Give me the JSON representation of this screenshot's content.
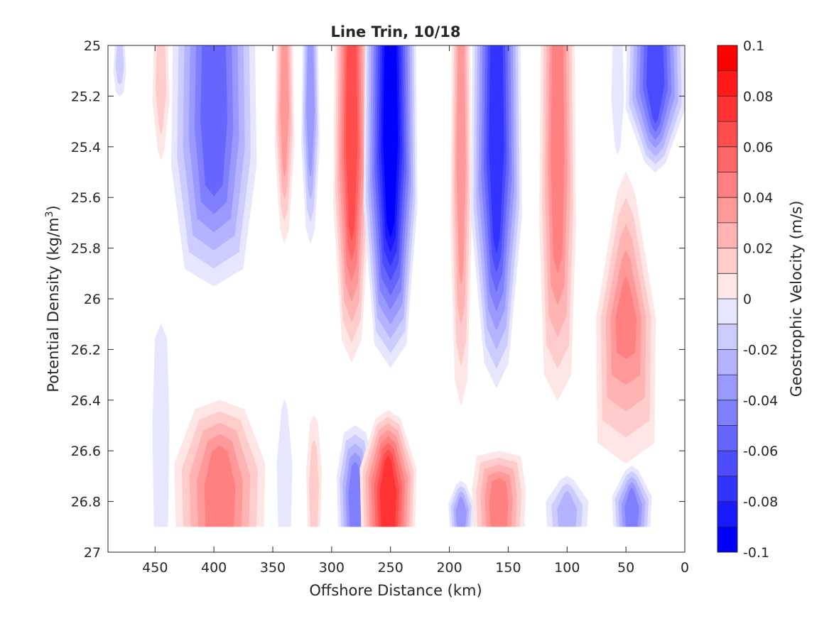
{
  "chart_data": {
    "type": "heatmap",
    "subtype": "filled-contour",
    "title": "Line Trin, 10/18",
    "xlabel": "Offshore Distance (km)",
    "ylabel_main": "Potential Density (kg/m",
    "ylabel_sup": "3",
    "ylabel_close": ")",
    "colorbar_label": "Geostrophic Velocity (m/s)",
    "xlim": [
      490,
      0
    ],
    "x_reversed": true,
    "ylim": [
      25,
      27
    ],
    "y_reversed": true,
    "x_ticks": [
      450,
      400,
      350,
      300,
      250,
      200,
      150,
      100,
      50,
      0
    ],
    "x_tick_labels": [
      "450",
      "400",
      "350",
      "300",
      "250",
      "200",
      "150",
      "100",
      "50",
      "0"
    ],
    "y_ticks": [
      25,
      25.2,
      25.4,
      25.6,
      25.8,
      26,
      26.2,
      26.4,
      26.6,
      26.8,
      27
    ],
    "y_tick_labels": [
      "25",
      "25.2",
      "25.4",
      "25.6",
      "25.8",
      "26",
      "26.2",
      "26.4",
      "26.6",
      "26.8",
      "27"
    ],
    "colorbar_ticks": [
      0.1,
      0.08,
      0.06,
      0.04,
      0.02,
      0,
      -0.02,
      -0.04,
      -0.06,
      -0.08,
      -0.1
    ],
    "colorbar_tick_labels": [
      "0.1",
      "0.08",
      "0.06",
      "0.04",
      "0.02",
      "0",
      "-0.02",
      "-0.04",
      "-0.06",
      "-0.08",
      "-0.1"
    ],
    "clim": [
      -0.1,
      0.1
    ],
    "contour_step": 0.01,
    "colormap": "blue-white-red",
    "colorbar_position": "right",
    "data_extent_y_max": 26.9,
    "grid": false,
    "features": [
      {
        "x": 480,
        "y0": 25.0,
        "y1": 25.2,
        "v": -0.015,
        "wt": 7,
        "wb": 5
      },
      {
        "x": 445,
        "y0": 25.0,
        "y1": 25.45,
        "v": 0.015,
        "wt": 10,
        "wb": 3
      },
      {
        "x": 445,
        "y0": 26.1,
        "y1": 26.9,
        "v": -0.012,
        "wt": 8,
        "wb": 10
      },
      {
        "x": 400,
        "y0": 25.0,
        "y1": 25.95,
        "v": -0.055,
        "wt": 58,
        "wb": 38
      },
      {
        "x": 395,
        "y0": 26.4,
        "y1": 26.9,
        "v": 0.045,
        "wt": 30,
        "wb": 62
      },
      {
        "x": 340,
        "y0": 25.0,
        "y1": 25.78,
        "v": 0.035,
        "wt": 12,
        "wb": 5
      },
      {
        "x": 340,
        "y0": 26.4,
        "y1": 26.9,
        "v": -0.012,
        "wt": 3,
        "wb": 9
      },
      {
        "x": 318,
        "y0": 25.0,
        "y1": 25.78,
        "v": -0.035,
        "wt": 11,
        "wb": 5
      },
      {
        "x": 315,
        "y0": 26.46,
        "y1": 26.9,
        "v": 0.015,
        "wt": 5,
        "wb": 9
      },
      {
        "x": 283,
        "y0": 25.0,
        "y1": 26.25,
        "v": 0.065,
        "wt": 24,
        "wb": 12
      },
      {
        "x": 280,
        "y0": 26.5,
        "y1": 26.9,
        "v": -0.045,
        "wt": 14,
        "wb": 24
      },
      {
        "x": 250,
        "y0": 25.0,
        "y1": 26.27,
        "v": -0.095,
        "wt": 36,
        "wb": 20
      },
      {
        "x": 252,
        "y0": 26.44,
        "y1": 26.9,
        "v": 0.075,
        "wt": 14,
        "wb": 38
      },
      {
        "x": 190,
        "y0": 25.0,
        "y1": 26.42,
        "v": 0.035,
        "wt": 13,
        "wb": 8
      },
      {
        "x": 190,
        "y0": 26.72,
        "y1": 26.9,
        "v": -0.035,
        "wt": 5,
        "wb": 16
      },
      {
        "x": 160,
        "y0": 25.0,
        "y1": 26.35,
        "v": -0.075,
        "wt": 34,
        "wb": 14
      },
      {
        "x": 158,
        "y0": 26.6,
        "y1": 26.9,
        "v": 0.045,
        "wt": 30,
        "wb": 36
      },
      {
        "x": 108,
        "y0": 25.0,
        "y1": 26.4,
        "v": 0.045,
        "wt": 24,
        "wb": 18
      },
      {
        "x": 100,
        "y0": 26.7,
        "y1": 26.9,
        "v": -0.025,
        "wt": 6,
        "wb": 28
      },
      {
        "x": 57,
        "y0": 25.0,
        "y1": 25.43,
        "v": -0.012,
        "wt": 7,
        "wb": 3
      },
      {
        "x": 45,
        "y0": 26.66,
        "y1": 26.9,
        "v": -0.045,
        "wt": 6,
        "wb": 26
      },
      {
        "x": 50,
        "y0": 25.5,
        "y1": 26.65,
        "v": 0.045,
        "wt": 8,
        "wb": 40
      },
      {
        "x": 25,
        "y0": 25.0,
        "y1": 25.5,
        "v": -0.065,
        "wt": 40,
        "wb": 10
      }
    ]
  },
  "colors": {
    "negative_max": "#0000ff",
    "positive_max": "#ff0000",
    "zero": "#ffffff",
    "axis": "#262626"
  }
}
